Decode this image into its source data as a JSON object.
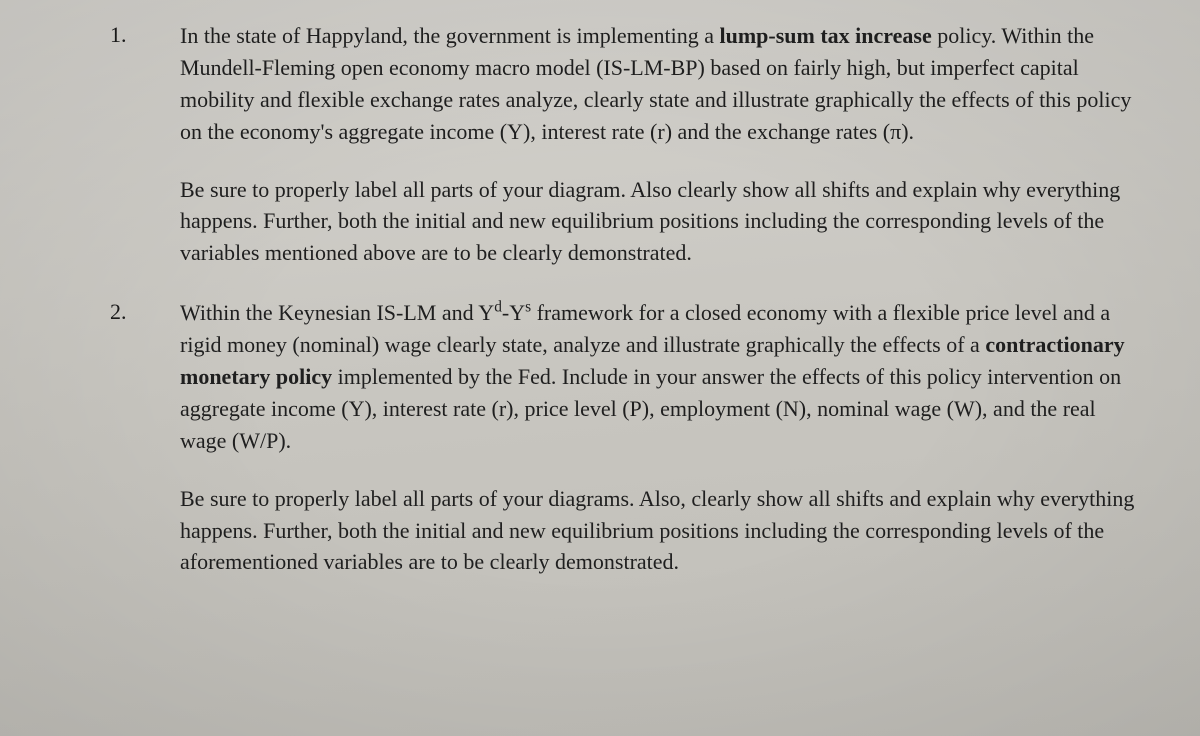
{
  "questions": [
    {
      "number": "1.",
      "para1_pre": "In the state of Happyland, the government is implementing a ",
      "para1_bold1": "lump-sum tax increase",
      "para1_post": " policy. Within the Mundell-Fleming open economy macro model (IS-LM-BP) based on fairly high, but imperfect capital mobility and flexible exchange rates analyze, clearly state and illustrate graphically the effects of this policy on the economy's aggregate income (Y), interest rate (r) and the exchange rates (π).",
      "para2": "Be sure to properly label all parts of your diagram. Also clearly show all shifts and explain why everything happens. Further, both the initial and new equilibrium positions including the corresponding levels of the variables mentioned above are to be clearly demonstrated."
    },
    {
      "number": "2.",
      "para1_pre": "Within the Keynesian IS-LM and Y",
      "para1_sup1": "d",
      "para1_mid1": "-Y",
      "para1_sup2": "s",
      "para1_mid2": " framework for a closed economy with a flexible price level and a rigid money (nominal) wage clearly state, analyze and illustrate graphically the effects of a ",
      "para1_bold1": "contractionary monetary policy",
      "para1_post": " implemented by the Fed. Include in your answer the effects of this policy intervention on aggregate income (Y), interest rate (r), price level (P), employment (N), nominal wage (W), and the real wage (W/P).",
      "para2": "Be sure to properly label all parts of your diagrams. Also, clearly show all shifts and explain why everything happens. Further, both the initial and new equilibrium positions including the corresponding levels of the aforementioned variables are to be clearly demonstrated."
    }
  ],
  "colors": {
    "background_top": "#d4d2cd",
    "background_bottom": "#bfbdb7",
    "text": "#1f1f1f"
  },
  "typography": {
    "body_fontsize": 22,
    "line_height": 1.45,
    "font_family": "Georgia, Times New Roman, serif"
  }
}
